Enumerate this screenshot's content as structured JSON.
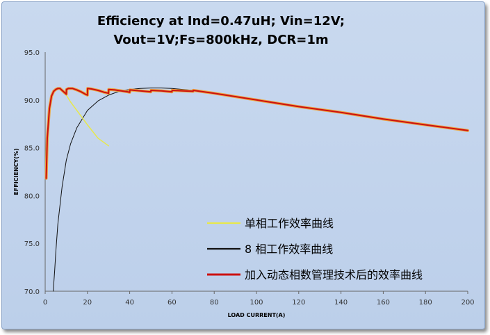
{
  "chart_data": {
    "type": "line",
    "title_lines": [
      "Efficiency at Ind=0.47uH; Vin=12V;",
      "Vout=1V;Fs=800kHz, DCR=1m"
    ],
    "xlabel": "LOAD CURRENT(A)",
    "ylabel": "EFFICIENCY(%)",
    "xlim": [
      0,
      200
    ],
    "ylim": [
      70,
      95
    ],
    "x_ticks": [
      "0",
      "20",
      "40",
      "60",
      "80",
      "100",
      "120",
      "140",
      "160",
      "180",
      "200"
    ],
    "y_ticks": [
      "70.0",
      "75.0",
      "80.0",
      "85.0",
      "90.0",
      "95.0"
    ],
    "grid": false,
    "legend_position": "lower-right",
    "series": [
      {
        "name": "单相工作效率曲线",
        "color": "#e8e84a",
        "width": 1.5,
        "x": [
          0.5,
          1,
          2,
          3,
          4,
          5,
          6,
          7,
          8,
          10,
          12,
          15,
          20,
          25,
          30
        ],
        "y": [
          81.8,
          86.0,
          89.1,
          90.4,
          90.9,
          91.1,
          91.2,
          91.2,
          91.0,
          90.5,
          89.8,
          88.9,
          87.4,
          86.0,
          85.2
        ]
      },
      {
        "name": "8 相工作效率曲线",
        "color": "#111111",
        "width": 1.0,
        "x": [
          3.8,
          4.5,
          5,
          6,
          8,
          10,
          12,
          15,
          20,
          25,
          30,
          35,
          40,
          45,
          50,
          55,
          60,
          70,
          80,
          100,
          120,
          140,
          160,
          180,
          200
        ],
        "y": [
          70.0,
          72.2,
          74.0,
          77.0,
          80.9,
          83.7,
          85.4,
          87.1,
          88.9,
          89.9,
          90.5,
          90.9,
          91.1,
          91.2,
          91.25,
          91.25,
          91.2,
          91.0,
          90.7,
          90.0,
          89.3,
          88.7,
          88.0,
          87.4,
          86.8
        ]
      },
      {
        "name": "加入动态相数管理技术后的效率曲线",
        "color": "#cc1111",
        "width": 2.0,
        "x": [
          0.5,
          1,
          2,
          3,
          4,
          5,
          6,
          7,
          8,
          9,
          10,
          10.05,
          11,
          13,
          15,
          17,
          19,
          20,
          20.05,
          22,
          25,
          28,
          30,
          30.05,
          33,
          36,
          39,
          40,
          40.05,
          45,
          50,
          50.05,
          55,
          60,
          60.05,
          65,
          70,
          70.05,
          80,
          100,
          120,
          140,
          160,
          180,
          200
        ],
        "y": [
          81.8,
          86.0,
          89.1,
          90.4,
          90.9,
          91.1,
          91.2,
          91.2,
          91.0,
          90.8,
          90.6,
          91.1,
          91.2,
          91.2,
          91.05,
          90.85,
          90.6,
          90.5,
          91.2,
          91.15,
          91.0,
          90.8,
          90.7,
          91.1,
          91.05,
          90.95,
          90.85,
          90.8,
          91.05,
          90.95,
          90.85,
          91.0,
          90.95,
          90.85,
          91.0,
          90.95,
          90.9,
          91.0,
          90.7,
          90.0,
          89.3,
          88.7,
          88.0,
          87.4,
          86.8
        ]
      }
    ]
  }
}
